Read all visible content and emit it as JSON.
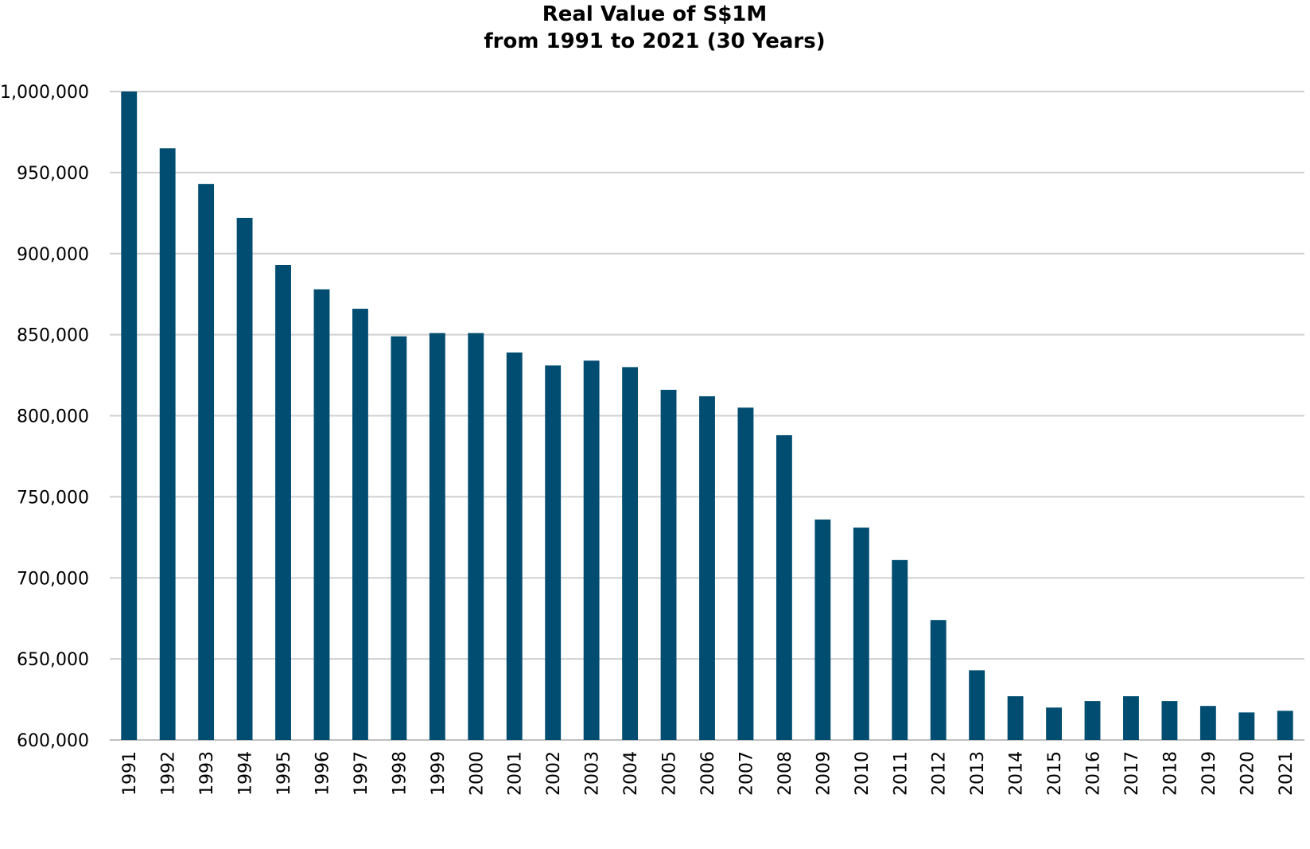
{
  "chart_data": {
    "type": "bar",
    "title": "Real Value of S$1M",
    "subtitle": "from 1991 to 2021 (30 Years)",
    "xlabel": "",
    "ylabel": "",
    "ylim": [
      600000,
      1000000
    ],
    "yticks": [
      1000000,
      950000,
      900000,
      850000,
      800000,
      750000,
      700000,
      650000,
      600000
    ],
    "ytick_labels": [
      "1,000,000",
      "950,000",
      "900,000",
      "850,000",
      "800,000",
      "750,000",
      "700,000",
      "650,000",
      "600,000"
    ],
    "grid": true,
    "bar_color": "#004D71",
    "categories": [
      "1991",
      "1992",
      "1993",
      "1994",
      "1995",
      "1996",
      "1997",
      "1998",
      "1999",
      "2000",
      "2001",
      "2002",
      "2003",
      "2004",
      "2005",
      "2006",
      "2007",
      "2008",
      "2009",
      "2010",
      "2011",
      "2012",
      "2013",
      "2014",
      "2015",
      "2016",
      "2017",
      "2018",
      "2019",
      "2020",
      "2021"
    ],
    "values": [
      1000000,
      965000,
      943000,
      922000,
      893000,
      878000,
      866000,
      849000,
      851000,
      851000,
      839000,
      831000,
      834000,
      830000,
      816000,
      812000,
      805000,
      788000,
      736000,
      731000,
      711000,
      674000,
      643000,
      627000,
      620000,
      624000,
      627000,
      624000,
      621000,
      617000,
      618000
    ]
  }
}
